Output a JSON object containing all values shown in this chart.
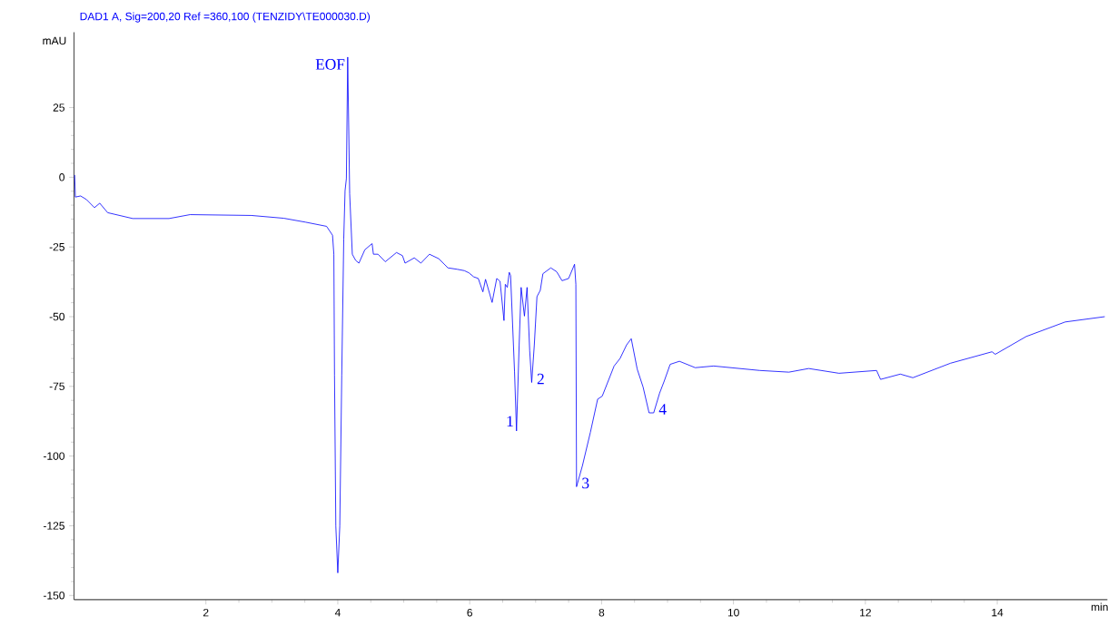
{
  "chart_data": {
    "type": "line",
    "title": "DAD1 A, Sig=200,20 Ref =360,100 (TENZIDY\\TE000030.D)",
    "xlabel": "min",
    "ylabel": "mAU",
    "x": [
      0.01,
      0.02,
      0.1,
      0.19,
      0.31,
      0.39,
      0.51,
      0.89,
      1.44,
      1.76,
      2.69,
      3.18,
      3.51,
      3.83,
      3.92,
      3.94,
      3.95,
      3.97,
      4.0,
      4.03,
      4.06,
      4.09,
      4.11,
      4.13,
      4.15,
      4.18,
      4.22,
      4.27,
      4.32,
      4.41,
      4.52,
      4.54,
      4.61,
      4.72,
      4.89,
      4.98,
      5.02,
      5.16,
      5.26,
      5.39,
      5.53,
      5.67,
      5.81,
      5.92,
      5.99,
      6.06,
      6.13,
      6.2,
      6.24,
      6.34,
      6.41,
      6.46,
      6.52,
      6.54,
      6.57,
      6.6,
      6.62,
      6.68,
      6.71,
      6.75,
      6.78,
      6.83,
      6.87,
      6.91,
      6.94,
      6.98,
      7.02,
      7.07,
      7.11,
      7.23,
      7.32,
      7.4,
      7.5,
      7.59,
      7.61,
      7.62,
      7.71,
      7.83,
      7.94,
      8.01,
      8.19,
      8.28,
      8.38,
      8.45,
      8.54,
      8.63,
      8.72,
      8.79,
      8.88,
      8.95,
      9.04,
      9.18,
      9.42,
      9.7,
      10.4,
      10.84,
      11.14,
      11.6,
      12.17,
      12.23,
      12.53,
      12.72,
      13.29,
      13.92,
      13.97,
      14.44,
      15.03,
      15.63
    ],
    "series": [
      {
        "color": "#0000ff",
        "values": [
          0.8,
          -7.1,
          -6.7,
          -8.0,
          -10.9,
          -9.3,
          -12.7,
          -14.8,
          -14.8,
          -13.4,
          -13.7,
          -14.7,
          -16.1,
          -17.6,
          -20.8,
          -27.6,
          -70.9,
          -125.1,
          -141.9,
          -125.1,
          -70.9,
          -22.2,
          -4.8,
          -0.5,
          43.1,
          -5.9,
          -27.6,
          -29.8,
          -30.8,
          -26.0,
          -23.8,
          -27.6,
          -27.6,
          -30.3,
          -27.0,
          -28.1,
          -30.8,
          -28.9,
          -30.8,
          -27.6,
          -29.2,
          -32.5,
          -33.0,
          -33.5,
          -34.3,
          -35.7,
          -36.3,
          -41.1,
          -36.6,
          -44.9,
          -36.3,
          -37.3,
          -51.4,
          -38.4,
          -39.5,
          -34.1,
          -35.2,
          -69.8,
          -91.0,
          -60.1,
          -39.5,
          -49.8,
          -39.5,
          -62.3,
          -73.6,
          -60.1,
          -42.8,
          -40.6,
          -34.6,
          -32.5,
          -33.9,
          -37.1,
          -36.3,
          -31.2,
          -38.4,
          -111.0,
          -103.4,
          -91.5,
          -79.6,
          -78.5,
          -67.7,
          -65.0,
          -60.1,
          -57.9,
          -68.8,
          -75.3,
          -84.5,
          -84.5,
          -77.4,
          -73.1,
          -67.1,
          -66.0,
          -68.3,
          -67.7,
          -69.3,
          -69.9,
          -68.6,
          -70.3,
          -69.3,
          -72.5,
          -70.6,
          -71.9,
          -66.7,
          -62.6,
          -63.5,
          -57.1,
          -51.9,
          -50.0
        ]
      }
    ],
    "xlim": [
      0,
      15.67
    ],
    "ylim": [
      -151.5,
      52
    ],
    "xticks": [
      2,
      4,
      6,
      8,
      10,
      12,
      14
    ],
    "yticks": [
      -150,
      -125,
      -100,
      -75,
      -50,
      -25,
      0,
      25
    ],
    "annotations": [
      {
        "text": "EOF",
        "x": 4.15,
        "y": 43.1
      },
      {
        "text": "1",
        "x": 6.71,
        "y": -91.0
      },
      {
        "text": "2",
        "x": 6.94,
        "y": -73.6
      },
      {
        "text": "3",
        "x": 7.62,
        "y": -111.0
      },
      {
        "text": "4",
        "x": 8.79,
        "y": -84.5
      }
    ]
  }
}
